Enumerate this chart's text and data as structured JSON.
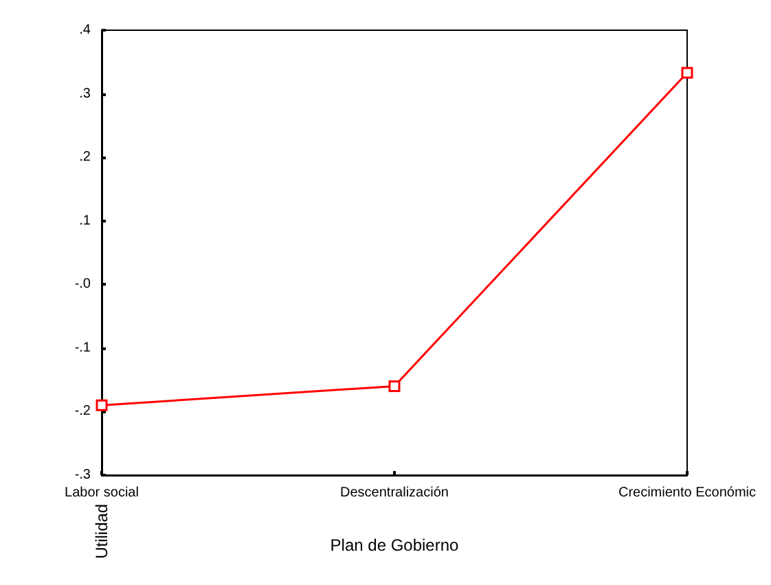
{
  "chart_data": {
    "type": "line",
    "xlabel": "Plan de Gobierno",
    "ylabel": "Utilidad",
    "categories": [
      "Labor social",
      "Descentralización",
      "Crecimiento Económic"
    ],
    "series": [
      {
        "color": "#ff0000",
        "values": [
          -0.19,
          -0.16,
          0.333
        ]
      }
    ],
    "ylim": [
      -0.3,
      0.4
    ],
    "yticks": [
      {
        "value": -0.3,
        "label": "-.3"
      },
      {
        "value": -0.2,
        "label": "-.2"
      },
      {
        "value": -0.1,
        "label": "-.1"
      },
      {
        "value": 0,
        "label": "-.0"
      },
      {
        "value": 0.1,
        "label": ".1"
      },
      {
        "value": 0.2,
        "label": ".2"
      },
      {
        "value": 0.3,
        "label": ".3"
      },
      {
        "value": 0.4,
        "label": ".4"
      }
    ],
    "grid": false,
    "marker": "square",
    "line_style": "solid"
  }
}
